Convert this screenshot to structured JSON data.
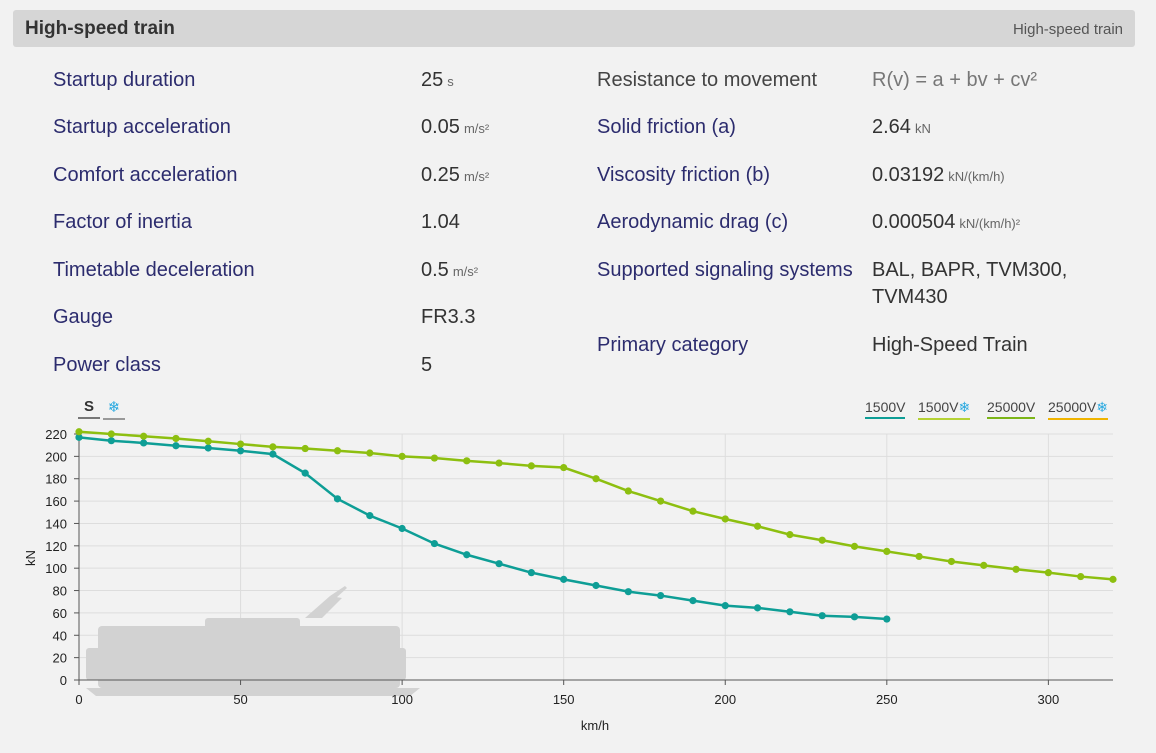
{
  "header": {
    "title": "High-speed train",
    "tag": "High-speed train"
  },
  "left_specs": [
    {
      "label": "Startup duration",
      "value": "25",
      "unit": "s"
    },
    {
      "label": "Startup acceleration",
      "value": "0.05",
      "unit": "m/s²"
    },
    {
      "label": "Comfort acceleration",
      "value": "0.25",
      "unit": "m/s²"
    },
    {
      "label": "Factor of inertia",
      "value": "1.04",
      "unit": ""
    },
    {
      "label": "Timetable deceleration",
      "value": "0.5",
      "unit": "m/s²"
    },
    {
      "label": "Gauge",
      "value": "FR3.3",
      "unit": ""
    },
    {
      "label": "Power class",
      "value": "5",
      "unit": ""
    }
  ],
  "right_specs": {
    "resistance": {
      "label": "Resistance to movement",
      "value": "R(v) = a + bv + cv²"
    },
    "solid": {
      "label": "Solid friction (a)",
      "value": "2.64",
      "unit": "kN"
    },
    "viscosity": {
      "label": "Viscosity friction (b)",
      "value": "0.03192",
      "unit": "kN/(km/h)"
    },
    "aero": {
      "label": "Aerodynamic drag (c)",
      "value": "0.000504",
      "unit": "kN/(km/h)²"
    },
    "signaling": {
      "label": "Supported signaling systems",
      "value_line1": "BAL, BAPR, TVM300,",
      "value_line2": "TVM430"
    },
    "category": {
      "label": "Primary category",
      "value": "High-Speed Train"
    }
  },
  "toggles": {
    "standard": "S",
    "comfort_icon": "snowflake-icon",
    "comfort_glyph": "❄"
  },
  "legend": [
    {
      "label": "1500V",
      "comfort": false,
      "color": "#0e9e96"
    },
    {
      "label": "1500V",
      "comfort": true,
      "color": "#b5d234"
    },
    {
      "label": "25000V",
      "comfort": false,
      "color": "#7cb518"
    },
    {
      "label": "25000V",
      "comfort": true,
      "color": "#f0b400"
    }
  ],
  "chart_data": {
    "type": "line",
    "xlabel": "km/h",
    "ylabel": "kN",
    "xlim": [
      0,
      320
    ],
    "ylim": [
      0,
      220
    ],
    "xticks": [
      0,
      50,
      100,
      150,
      200,
      250,
      300
    ],
    "yticks": [
      0,
      20,
      40,
      60,
      80,
      100,
      120,
      140,
      160,
      180,
      200,
      220
    ],
    "grid": true,
    "legend_position": "top-right",
    "series": [
      {
        "name": "1500V",
        "color": "#0e9e96",
        "x": [
          0,
          10,
          20,
          30,
          40,
          50,
          60,
          70,
          80,
          90,
          100,
          110,
          120,
          130,
          140,
          150,
          160,
          170,
          180,
          190,
          200,
          210,
          220,
          230,
          240,
          250
        ],
        "y": [
          217,
          214,
          212,
          209.5,
          207.5,
          205,
          202,
          185,
          162,
          147,
          135.5,
          122,
          112,
          104,
          96,
          90,
          84.5,
          79,
          75.5,
          71,
          66.5,
          64.5,
          61,
          57.5,
          56.5,
          54.5
        ]
      },
      {
        "name": "25000V",
        "color": "#8dbf10",
        "x": [
          0,
          10,
          20,
          30,
          40,
          50,
          60,
          70,
          80,
          90,
          100,
          110,
          120,
          130,
          140,
          150,
          160,
          170,
          180,
          190,
          200,
          210,
          220,
          230,
          240,
          250,
          260,
          270,
          280,
          290,
          300,
          310,
          320
        ],
        "y": [
          222,
          220,
          218,
          216,
          213.5,
          211,
          208.5,
          207,
          205,
          203,
          200,
          198.5,
          196,
          194,
          191.5,
          190,
          180,
          169,
          160,
          151,
          144,
          137.5,
          130,
          125,
          119.5,
          115,
          110.5,
          106,
          102.5,
          99,
          96,
          92.5,
          90
        ]
      }
    ]
  }
}
